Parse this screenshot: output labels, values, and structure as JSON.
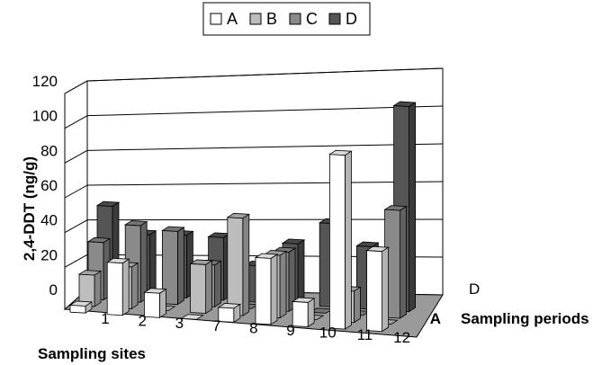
{
  "chart_data": {
    "type": "bar",
    "chart_style": "3d-clustered-column",
    "title": "",
    "ylabel": "2,4-DDT (ng/g)",
    "xlabel": "Sampling sites",
    "zlabel": "Sampling periods",
    "zticks_visible": [
      "A",
      "D"
    ],
    "ylim": [
      0,
      120
    ],
    "yticks": [
      "0",
      "20",
      "40",
      "60",
      "80",
      "100",
      "120"
    ],
    "grid": true,
    "legend_position": "top",
    "categories": [
      "1",
      "2",
      "3",
      "7",
      "8",
      "9",
      "10",
      "11",
      "12"
    ],
    "series": [
      {
        "name": "A",
        "color": "#ffffff",
        "values": [
          4,
          30,
          14,
          0,
          8,
          38,
          14,
          100,
          46
        ]
      },
      {
        "name": "B",
        "color": "#bdbdbd",
        "values": [
          18,
          24,
          0,
          28,
          56,
          36,
          0,
          18,
          0
        ]
      },
      {
        "name": "C",
        "color": "#8a8a8a",
        "values": [
          33,
          44,
          42,
          24,
          0,
          34,
          0,
          0,
          62
        ]
      },
      {
        "name": "D",
        "color": "#555555",
        "values": [
          50,
          35,
          36,
          36,
          21,
          35,
          48,
          36,
          118
        ]
      }
    ]
  }
}
